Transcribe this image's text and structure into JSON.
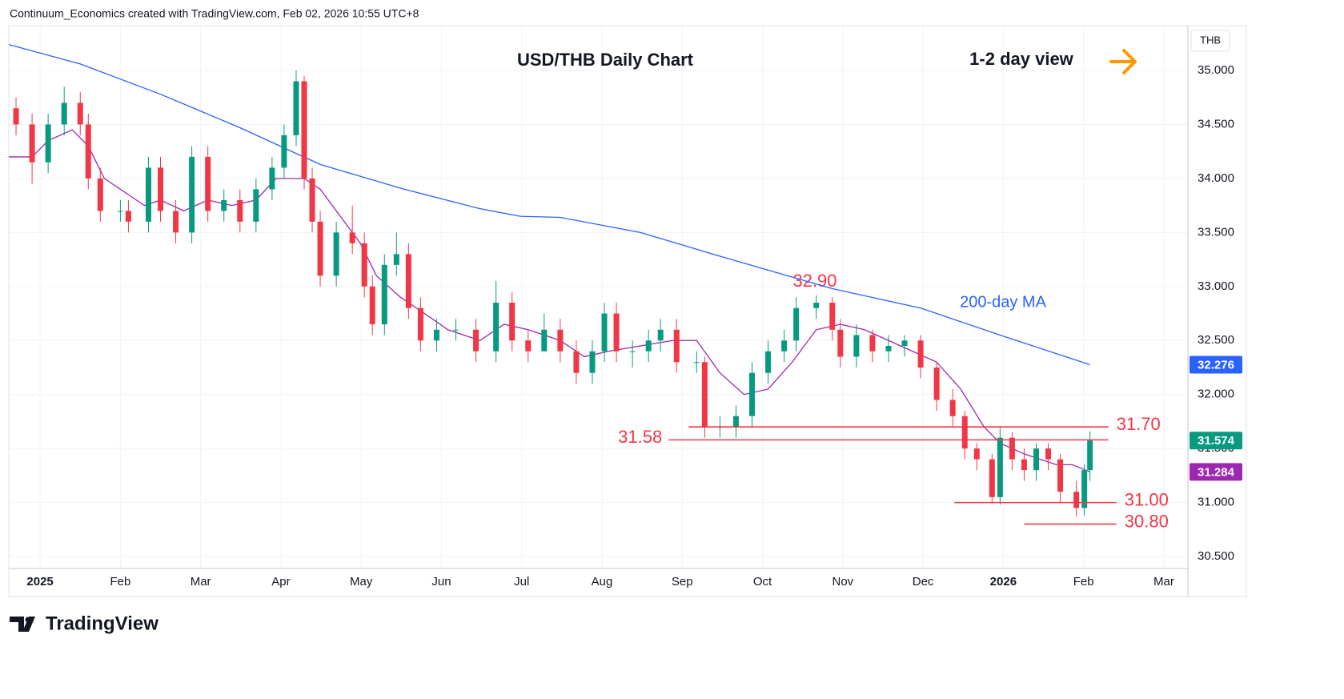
{
  "header": "Continuum_Economics created with TradingView.com, Feb 02, 2026 10:55 UTC+8",
  "brand": "TradingView",
  "chart_data": {
    "type": "candlestick",
    "title": "USD/THB Daily Chart",
    "subtitle": "1-2 day view",
    "currency": "THB",
    "annotations": [
      {
        "text": "32.90"
      },
      {
        "text": "200-day MA"
      }
    ],
    "xlim": [
      -0.39,
      14.3
    ],
    "xticks": [
      {
        "value": 0,
        "label": "2025"
      },
      {
        "value": 1,
        "label": "Feb"
      },
      {
        "value": 2,
        "label": "Mar"
      },
      {
        "value": 3,
        "label": "Apr"
      },
      {
        "value": 4,
        "label": "May"
      },
      {
        "value": 5,
        "label": "Jun"
      },
      {
        "value": 6,
        "label": "Jul"
      },
      {
        "value": 7,
        "label": "Aug"
      },
      {
        "value": 8,
        "label": "Sep"
      },
      {
        "value": 9,
        "label": "Oct"
      },
      {
        "value": 10,
        "label": "Nov"
      },
      {
        "value": 11,
        "label": "Dec"
      },
      {
        "value": 12,
        "label": "2026"
      },
      {
        "value": 13,
        "label": "Feb"
      },
      {
        "value": 14,
        "label": "Mar"
      }
    ],
    "ylim": [
      30.13,
      35.415
    ],
    "yticks": [
      {
        "value": 30.5,
        "label": "30.500"
      },
      {
        "value": 31,
        "label": "31.000"
      },
      {
        "value": 31.5,
        "label": "31.500"
      },
      {
        "value": 32,
        "label": "32.000"
      },
      {
        "value": 32.5,
        "label": "32.500"
      },
      {
        "value": 33,
        "label": "33.000"
      },
      {
        "value": 33.5,
        "label": "33.500"
      },
      {
        "value": 34,
        "label": "34.000"
      },
      {
        "value": 34.5,
        "label": "34.500"
      },
      {
        "value": 35,
        "label": "35.000"
      }
    ],
    "grid": true,
    "up_color": "#089981",
    "down_color": "#f23645",
    "candles": {
      "x": [
        -0.3,
        -0.1,
        0.1,
        0.3,
        0.5,
        0.6,
        0.75,
        1.0,
        1.1,
        1.35,
        1.5,
        1.69,
        1.89,
        2.09,
        2.29,
        2.49,
        2.69,
        2.89,
        3.04,
        3.19,
        3.29,
        3.39,
        3.49,
        3.69,
        3.89,
        4.04,
        4.14,
        4.29,
        4.44,
        4.59,
        4.74,
        4.94,
        5.18,
        5.43,
        5.68,
        5.88,
        6.08,
        6.28,
        6.48,
        6.68,
        6.88,
        7.03,
        7.18,
        7.38,
        7.58,
        7.73,
        7.93,
        8.18,
        8.28,
        8.47,
        8.67,
        8.87,
        9.07,
        9.27,
        9.42,
        9.67,
        9.87,
        9.97,
        10.17,
        10.37,
        10.57,
        10.77,
        10.97,
        11.17,
        11.37,
        11.52,
        11.67,
        11.86,
        11.96,
        12.11,
        12.26,
        12.41,
        12.56,
        12.71,
        12.91,
        13.01,
        13.08
      ],
      "open": [
        34.65,
        34.5,
        34.15,
        34.5,
        34.7,
        34.5,
        34.0,
        33.7,
        33.7,
        33.6,
        34.1,
        33.7,
        33.5,
        34.2,
        33.7,
        33.8,
        33.6,
        33.9,
        34.1,
        34.4,
        34.9,
        34.0,
        33.6,
        33.1,
        33.5,
        33.4,
        33.0,
        32.65,
        33.2,
        33.3,
        32.8,
        32.5,
        32.6,
        32.6,
        32.4,
        32.85,
        32.5,
        32.4,
        32.6,
        32.4,
        32.2,
        32.4,
        32.75,
        32.4,
        32.4,
        32.5,
        32.6,
        32.3,
        32.3,
        31.7,
        31.7,
        31.8,
        32.2,
        32.4,
        32.5,
        32.8,
        32.85,
        32.6,
        32.35,
        32.55,
        32.4,
        32.45,
        32.5,
        32.25,
        31.95,
        31.8,
        31.5,
        31.4,
        31.05,
        31.6,
        31.4,
        31.3,
        31.5,
        31.4,
        31.1,
        30.95,
        31.3
      ],
      "high": [
        34.75,
        34.6,
        34.6,
        34.85,
        34.8,
        34.6,
        34.1,
        33.8,
        33.8,
        34.2,
        34.2,
        33.8,
        34.3,
        34.3,
        33.9,
        33.9,
        34.0,
        34.2,
        34.5,
        35.0,
        34.95,
        34.1,
        33.7,
        33.6,
        33.75,
        33.5,
        33.1,
        33.3,
        33.5,
        33.4,
        32.9,
        32.7,
        32.7,
        32.7,
        33.05,
        32.95,
        32.6,
        32.75,
        32.7,
        32.5,
        32.5,
        32.85,
        32.85,
        32.5,
        32.6,
        32.7,
        32.7,
        32.4,
        32.35,
        31.8,
        31.9,
        32.3,
        32.5,
        32.6,
        32.9,
        32.92,
        32.9,
        32.7,
        32.65,
        32.6,
        32.55,
        32.55,
        32.55,
        32.3,
        32.05,
        31.85,
        31.55,
        31.45,
        31.7,
        31.65,
        31.5,
        31.55,
        31.55,
        31.45,
        31.2,
        31.35,
        31.66
      ],
      "low": [
        34.4,
        33.95,
        34.05,
        34.4,
        34.4,
        33.9,
        33.6,
        33.6,
        33.5,
        33.5,
        33.6,
        33.4,
        33.4,
        33.6,
        33.6,
        33.5,
        33.5,
        33.8,
        34.0,
        34.3,
        33.9,
        33.5,
        33.0,
        33.0,
        33.3,
        32.9,
        32.55,
        32.55,
        33.1,
        32.7,
        32.4,
        32.4,
        32.5,
        32.3,
        32.3,
        32.4,
        32.3,
        32.4,
        32.3,
        32.1,
        32.1,
        32.3,
        32.3,
        32.25,
        32.3,
        32.4,
        32.2,
        32.2,
        31.6,
        31.6,
        31.6,
        31.7,
        32.1,
        32.3,
        32.4,
        32.7,
        32.5,
        32.25,
        32.25,
        32.3,
        32.3,
        32.35,
        32.15,
        31.85,
        31.7,
        31.4,
        31.3,
        31.0,
        30.98,
        31.3,
        31.2,
        31.2,
        31.3,
        31.0,
        30.87,
        30.88,
        31.2
      ],
      "close": [
        34.5,
        34.15,
        34.5,
        34.7,
        34.5,
        34.0,
        33.7,
        33.7,
        33.6,
        34.1,
        33.7,
        33.5,
        34.2,
        33.7,
        33.8,
        33.6,
        33.9,
        34.1,
        34.4,
        34.9,
        34.0,
        33.6,
        33.1,
        33.5,
        33.4,
        33.0,
        32.65,
        33.2,
        33.3,
        32.8,
        32.5,
        32.6,
        32.6,
        32.4,
        32.85,
        32.5,
        32.4,
        32.6,
        32.4,
        32.2,
        32.4,
        32.75,
        32.4,
        32.4,
        32.5,
        32.6,
        32.3,
        32.3,
        31.7,
        31.7,
        31.8,
        32.2,
        32.4,
        32.5,
        32.8,
        32.85,
        32.6,
        32.35,
        32.55,
        32.4,
        32.45,
        32.5,
        32.25,
        31.95,
        31.8,
        31.5,
        31.4,
        31.05,
        31.6,
        31.4,
        31.3,
        31.5,
        31.4,
        31.1,
        30.95,
        31.3,
        31.574
      ]
    },
    "lines": [
      {
        "color": "#2962ff",
        "x": [
          -0.39,
          0.5,
          1.5,
          2.49,
          3.49,
          4.49,
          5.48,
          5.98,
          6.48,
          7.48,
          8.47,
          9.87,
          10.97,
          11.96,
          13.08
        ],
        "values": [
          35.24,
          35.06,
          34.78,
          34.47,
          34.13,
          33.91,
          33.72,
          33.65,
          33.64,
          33.5,
          33.28,
          32.98,
          32.8,
          32.55,
          32.276
        ]
      },
      {
        "color": "#9c27b0",
        "x": [
          -0.39,
          -0.1,
          0.1,
          0.4,
          0.6,
          0.8,
          1.0,
          1.3,
          1.5,
          1.79,
          2.09,
          2.39,
          2.69,
          2.94,
          3.09,
          3.29,
          3.49,
          3.79,
          3.99,
          4.19,
          4.49,
          4.79,
          5.08,
          5.48,
          5.78,
          6.08,
          6.48,
          6.78,
          7.08,
          7.48,
          7.88,
          8.18,
          8.47,
          8.77,
          9.07,
          9.37,
          9.67,
          9.97,
          10.27,
          10.57,
          10.87,
          11.17,
          11.47,
          11.76,
          11.96,
          12.26,
          12.46,
          12.66,
          12.86,
          13.08
        ],
        "values": [
          34.2,
          34.2,
          34.35,
          34.45,
          34.3,
          34.0,
          33.9,
          33.75,
          33.8,
          33.7,
          33.8,
          33.75,
          33.8,
          34.0,
          34.0,
          34.0,
          33.9,
          33.6,
          33.4,
          33.1,
          32.9,
          32.75,
          32.6,
          32.5,
          32.65,
          32.6,
          32.5,
          32.35,
          32.4,
          32.45,
          32.5,
          32.5,
          32.2,
          32.0,
          32.05,
          32.3,
          32.6,
          32.65,
          32.6,
          32.5,
          32.4,
          32.3,
          32.05,
          31.7,
          31.55,
          31.45,
          31.4,
          31.35,
          31.35,
          31.284
        ]
      }
    ],
    "levels": [
      {
        "value": 31.7,
        "label": "31.70",
        "x": [
          8.08,
          13.31
        ],
        "label_position": "right"
      },
      {
        "value": 31.58,
        "label": "31.58",
        "x": [
          7.83,
          13.31
        ],
        "label_position": "left"
      },
      {
        "value": 31.0,
        "label": "31.00",
        "x": [
          11.39,
          13.41
        ],
        "label_position": "right"
      },
      {
        "value": 30.8,
        "label": "30.80",
        "x": [
          12.26,
          13.41
        ],
        "label_position": "right"
      }
    ],
    "level_color": "#f23645",
    "price_labels": [
      {
        "value": 32.276,
        "color": "#2962ff"
      },
      {
        "value": 31.574,
        "color": "#089981"
      },
      {
        "value": 31.284,
        "color": "#9c27b0"
      }
    ]
  }
}
